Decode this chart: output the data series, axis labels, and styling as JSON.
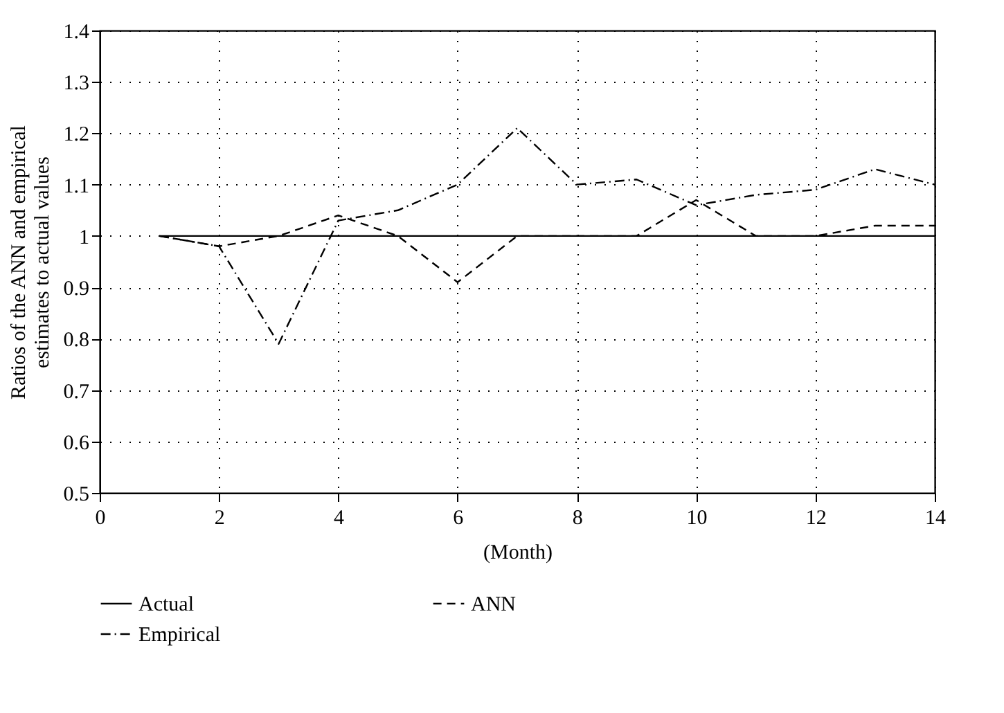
{
  "chart_data": {
    "type": "line",
    "xlabel": "(Month)",
    "ylabel": "Ratios of the ANN and empirical estimates to actual values",
    "x": [
      1,
      2,
      3,
      4,
      5,
      6,
      7,
      8,
      9,
      10,
      11,
      12,
      13,
      14
    ],
    "series": [
      {
        "name": "Actual",
        "color": "#000000",
        "line_style": "solid",
        "values": [
          1,
          1,
          1,
          1,
          1,
          1,
          1,
          1,
          1,
          1,
          1,
          1,
          1,
          1
        ]
      },
      {
        "name": "ANN",
        "color": "#000000",
        "line_style": "dashed",
        "values": [
          1,
          0.98,
          1.0,
          1.04,
          1.0,
          0.91,
          1.0,
          1.0,
          1.0,
          1.07,
          1.0,
          1.0,
          1.02,
          1.02
        ]
      },
      {
        "name": "Empirical",
        "color": "#000000",
        "line_style": "dashdot",
        "values": [
          1,
          0.98,
          0.79,
          1.03,
          1.05,
          1.1,
          1.21,
          1.1,
          1.11,
          1.06,
          1.08,
          1.09,
          1.13,
          1.1
        ]
      }
    ],
    "xlim": [
      0,
      14
    ],
    "xticks": [
      0,
      2,
      4,
      6,
      8,
      10,
      12,
      14
    ],
    "ylim": [
      0.5,
      1.4
    ],
    "yticks": [
      0.5,
      0.6,
      0.7,
      0.8,
      0.9,
      1,
      1.1,
      1.2,
      1.3,
      1.4
    ],
    "grid": true,
    "legend": "bottom",
    "marker": "none"
  }
}
